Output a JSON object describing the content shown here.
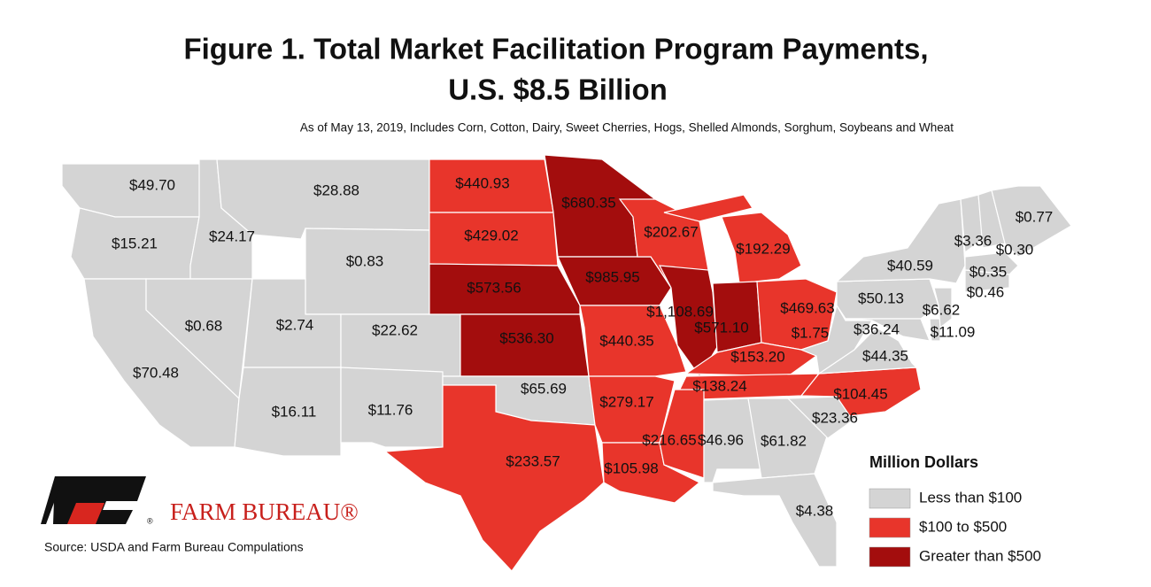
{
  "chart_data": {
    "type": "map",
    "title": [
      "Figure 1. Total Market Facilitation Program Payments,",
      "U.S. $8.5 Billion"
    ],
    "subtitle": "As of May 13, 2019, Includes Corn, Cotton, Dairy, Sweet Cherries, Hogs, Shelled Almonds, Sorghum, Soybeans and Wheat",
    "source": "Source: USDA and Farm Bureau Compulations",
    "brand": {
      "name": "FARM BUREAU®",
      "mark": "®"
    },
    "legend": {
      "title": "Million Dollars",
      "items": [
        {
          "label": "Less than $100",
          "color": "#d4d4d4"
        },
        {
          "label": "$100 to $500",
          "color": "#e8352b"
        },
        {
          "label": "Greater than $500",
          "color": "#a30d0d"
        }
      ]
    },
    "breaks": [
      100,
      500
    ],
    "values": [
      49.7,
      15.21,
      24.17,
      28.88,
      0.83,
      70.48,
      0.68,
      2.74,
      22.62,
      16.11,
      11.76,
      440.93,
      429.02,
      573.56,
      536.3,
      65.69,
      233.57,
      680.35,
      985.95,
      440.35,
      279.17,
      105.98,
      202.67,
      1108.69,
      192.29,
      571.1,
      469.63,
      153.2,
      138.24,
      216.65,
      46.96,
      61.82,
      4.38,
      23.36,
      104.45,
      44.35,
      1.75,
      50.13,
      40.59,
      36.24,
      11.09,
      6.62,
      3.36,
      0.3,
      0.77,
      0.35,
      0.46
    ],
    "value_labels": [
      "$49.70",
      "$15.21",
      "$24.17",
      "$28.88",
      "$0.83",
      "$70.48",
      "$0.68",
      "$2.74",
      "$22.62",
      "$16.11",
      "$11.76",
      "$440.93",
      "$429.02",
      "$573.56",
      "$536.30",
      "$65.69",
      "$233.57",
      "$680.35",
      "$985.95",
      "$440.35",
      "$279.17",
      "$105.98",
      "$202.67",
      "$1,108.69",
      "$192.29",
      "$571.10",
      "$469.63",
      "$153.20",
      "$138.24",
      "$216.65",
      "$46.96",
      "$61.82",
      "$4.38",
      "$23.36",
      "$104.45",
      "$44.35",
      "$1.75",
      "$50.13",
      "$40.59",
      "$36.24",
      "$11.09",
      "$6.62",
      "$3.36",
      "$0.30",
      "$0.77",
      "$0.35",
      "$0.46"
    ]
  }
}
